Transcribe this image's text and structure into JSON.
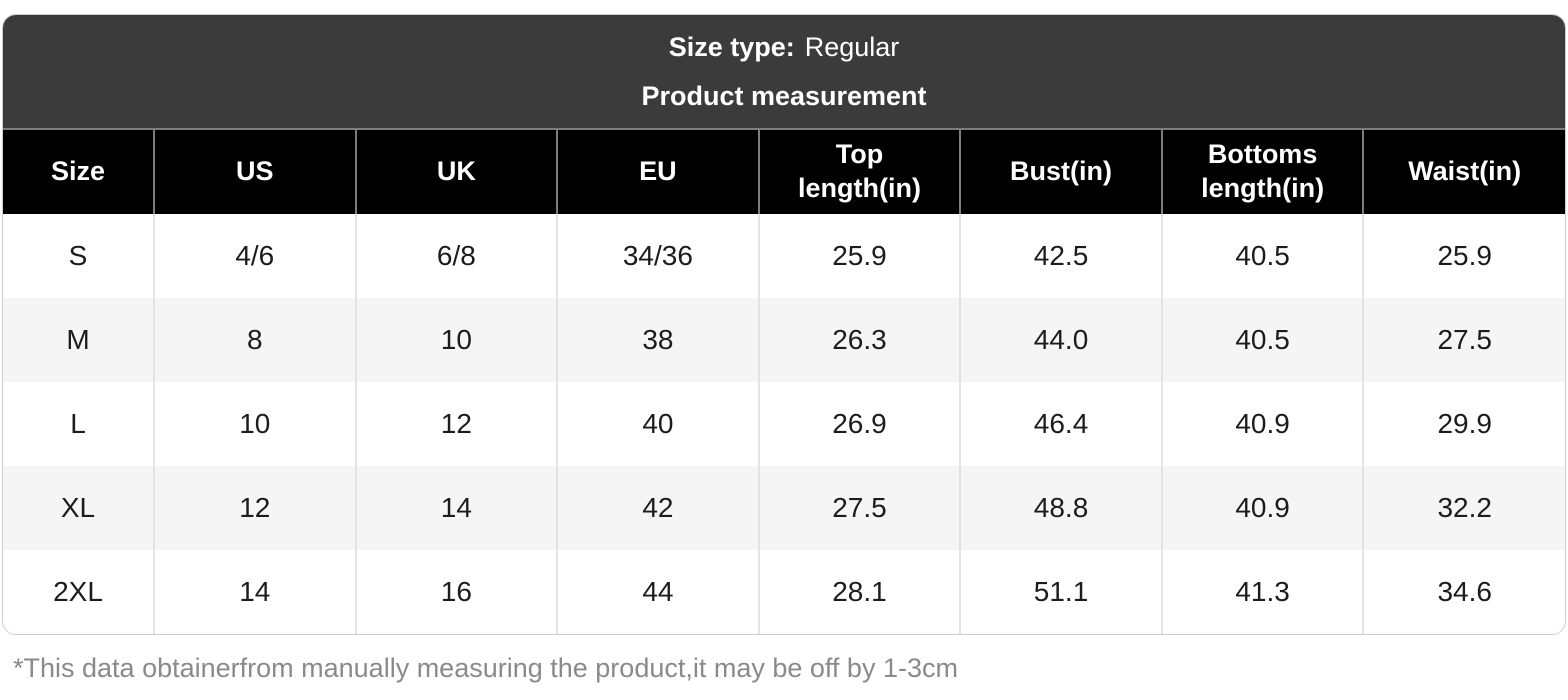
{
  "header": {
    "size_type_label": "Size type:",
    "size_type_value": "Regular",
    "subtitle": "Product measurement"
  },
  "table": {
    "columns": [
      "Size",
      "US",
      "UK",
      "EU",
      "Top length(in)",
      "Bust(in)",
      "Bottoms length(in)",
      "Waist(in)"
    ],
    "rows": [
      [
        "S",
        "4/6",
        "6/8",
        "34/36",
        "25.9",
        "42.5",
        "40.5",
        "25.9"
      ],
      [
        "M",
        "8",
        "10",
        "38",
        "26.3",
        "44.0",
        "40.5",
        "27.5"
      ],
      [
        "L",
        "10",
        "12",
        "40",
        "26.9",
        "46.4",
        "40.9",
        "29.9"
      ],
      [
        "XL",
        "12",
        "14",
        "42",
        "27.5",
        "48.8",
        "40.9",
        "32.2"
      ],
      [
        "2XL",
        "14",
        "16",
        "44",
        "28.1",
        "51.1",
        "41.3",
        "34.6"
      ]
    ]
  },
  "footnote": "*This data obtainerfrom manually measuring the product,it may be off by 1-3cm",
  "colors": {
    "title_bg": "#3b3b3b",
    "header_bg": "#000000",
    "header_text": "#ffffff",
    "row_alt_bg": "#f5f5f6",
    "body_text": "#1c1c1c",
    "separator_dark": "#7d7d7d",
    "separator_light": "#e3e3e4",
    "border": "#cccccc",
    "footnote_text": "#8a8a8a"
  }
}
